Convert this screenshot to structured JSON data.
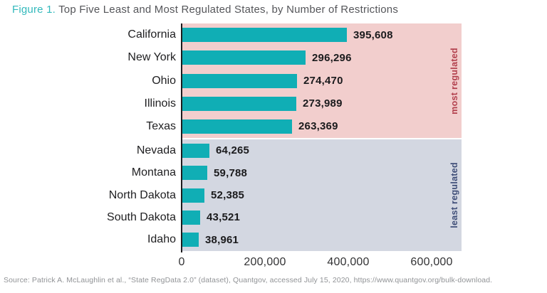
{
  "title": {
    "prefix": "Figure 1.",
    "text": " Top Five Least and Most Regulated States, by Number of Restrictions"
  },
  "source": "Source: Patrick A. McLaughlin et al., “State RegData 2.0” (dataset), Quantgov, accessed July 15, 2020, https://www.quantgov.org/bulk-download.",
  "chart_data": {
    "type": "bar",
    "orientation": "horizontal",
    "title": "Top Five Least and Most Regulated States, by Number of Restrictions",
    "xlabel": "",
    "ylabel": "",
    "categories": [
      "California",
      "New York",
      "Ohio",
      "Illinois",
      "Texas",
      "Nevada",
      "Montana",
      "North Dakota",
      "South Dakota",
      "Idaho"
    ],
    "values": [
      395608,
      296296,
      274470,
      273989,
      263369,
      64265,
      59788,
      52385,
      43521,
      38961
    ],
    "value_labels": [
      "395,608",
      "296,296",
      "274,470",
      "273,989",
      "263,369",
      "64,265",
      "59,788",
      "52,385",
      "43,521",
      "38,961"
    ],
    "groups": [
      {
        "name": "most regulated",
        "indices": [
          0,
          1,
          2,
          3,
          4
        ],
        "band_color": "#f2cecd",
        "label_color": "#b2404d"
      },
      {
        "name": "least regulated",
        "indices": [
          5,
          6,
          7,
          8,
          9
        ],
        "band_color": "#d3d7e1",
        "label_color": "#3f4e78"
      }
    ],
    "x_ticks": [
      "0",
      "200,000",
      "400,000",
      "600,000"
    ],
    "x_tick_values": [
      0,
      200000,
      400000,
      600000
    ],
    "xlim": [
      0,
      670000
    ],
    "grid": false,
    "legend": "none",
    "bar_color": "#10aeb5"
  },
  "colors": {
    "figure_prefix": "#33b9bc",
    "title_text": "#55565a",
    "bar": "#10aeb5",
    "most_band": "#f2cecd",
    "least_band": "#d3d7e1",
    "most_label": "#b2404d",
    "least_label": "#3f4e78",
    "axis_line": "#1c1c1e",
    "source_text": "#919396"
  }
}
